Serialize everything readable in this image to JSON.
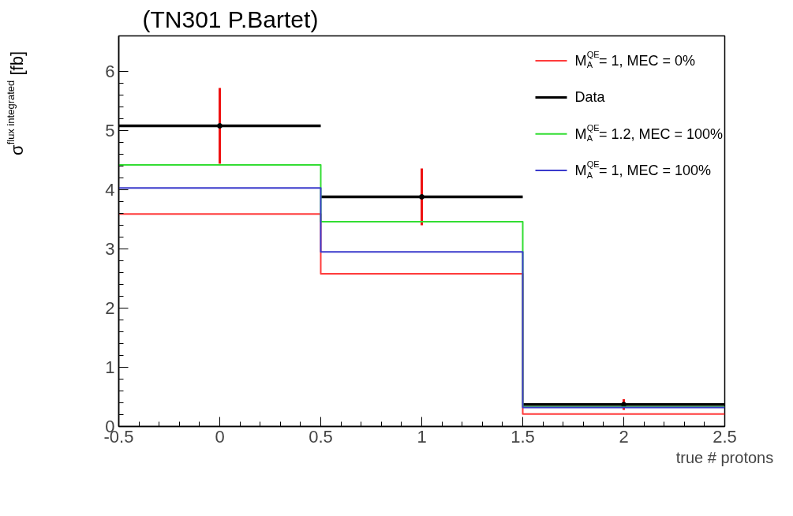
{
  "chart_data": {
    "type": "step",
    "title": "(TN301  P.Bartet)",
    "xlabel": "true # protons",
    "ylabel": "σ$^{flux integrated}$ [fb]",
    "x": [
      0,
      1,
      2
    ],
    "series": [
      {
        "name": "M$^{QE}$$_{A}$ = 1, MEC = 0%",
        "color": "#ff3b3b",
        "x": [
          -0.5,
          0.5,
          1.5,
          2.5
        ],
        "values": [
          3.59,
          2.58,
          0.21,
          0.21
        ]
      },
      {
        "name": "Data",
        "type": "scatter",
        "marker": "circle",
        "color": "#000000",
        "values": [
          5.08,
          3.88,
          0.37
        ],
        "errors": [
          0.64,
          0.48,
          0.09
        ],
        "xerrors": [
          0.5,
          0.5,
          0.5
        ]
      },
      {
        "name": "M$^{QE}$$_{A}$ = 1.2, MEC = 100%",
        "color": "#33dd33",
        "x": [
          -0.5,
          0.5,
          1.5,
          2.5
        ],
        "values": [
          4.42,
          3.46,
          0.33,
          0.33
        ]
      },
      {
        "name": "M$^{QE}$$_{A}$ = 1, MEC = 100%",
        "color": "#3b3bcc",
        "x": [
          -0.5,
          0.5,
          1.5,
          2.5
        ],
        "values": [
          4.03,
          2.95,
          0.32,
          0.32
        ]
      }
    ],
    "xlim": [
      -0.5,
      2.5
    ],
    "xticks": [
      -0.5,
      0,
      0.5,
      1,
      1.5,
      2,
      2.5
    ],
    "ylim": [
      0,
      6.6
    ],
    "yticks": [
      0,
      1,
      2,
      3,
      4,
      5,
      6
    ],
    "grid": false,
    "legend": "top right"
  }
}
